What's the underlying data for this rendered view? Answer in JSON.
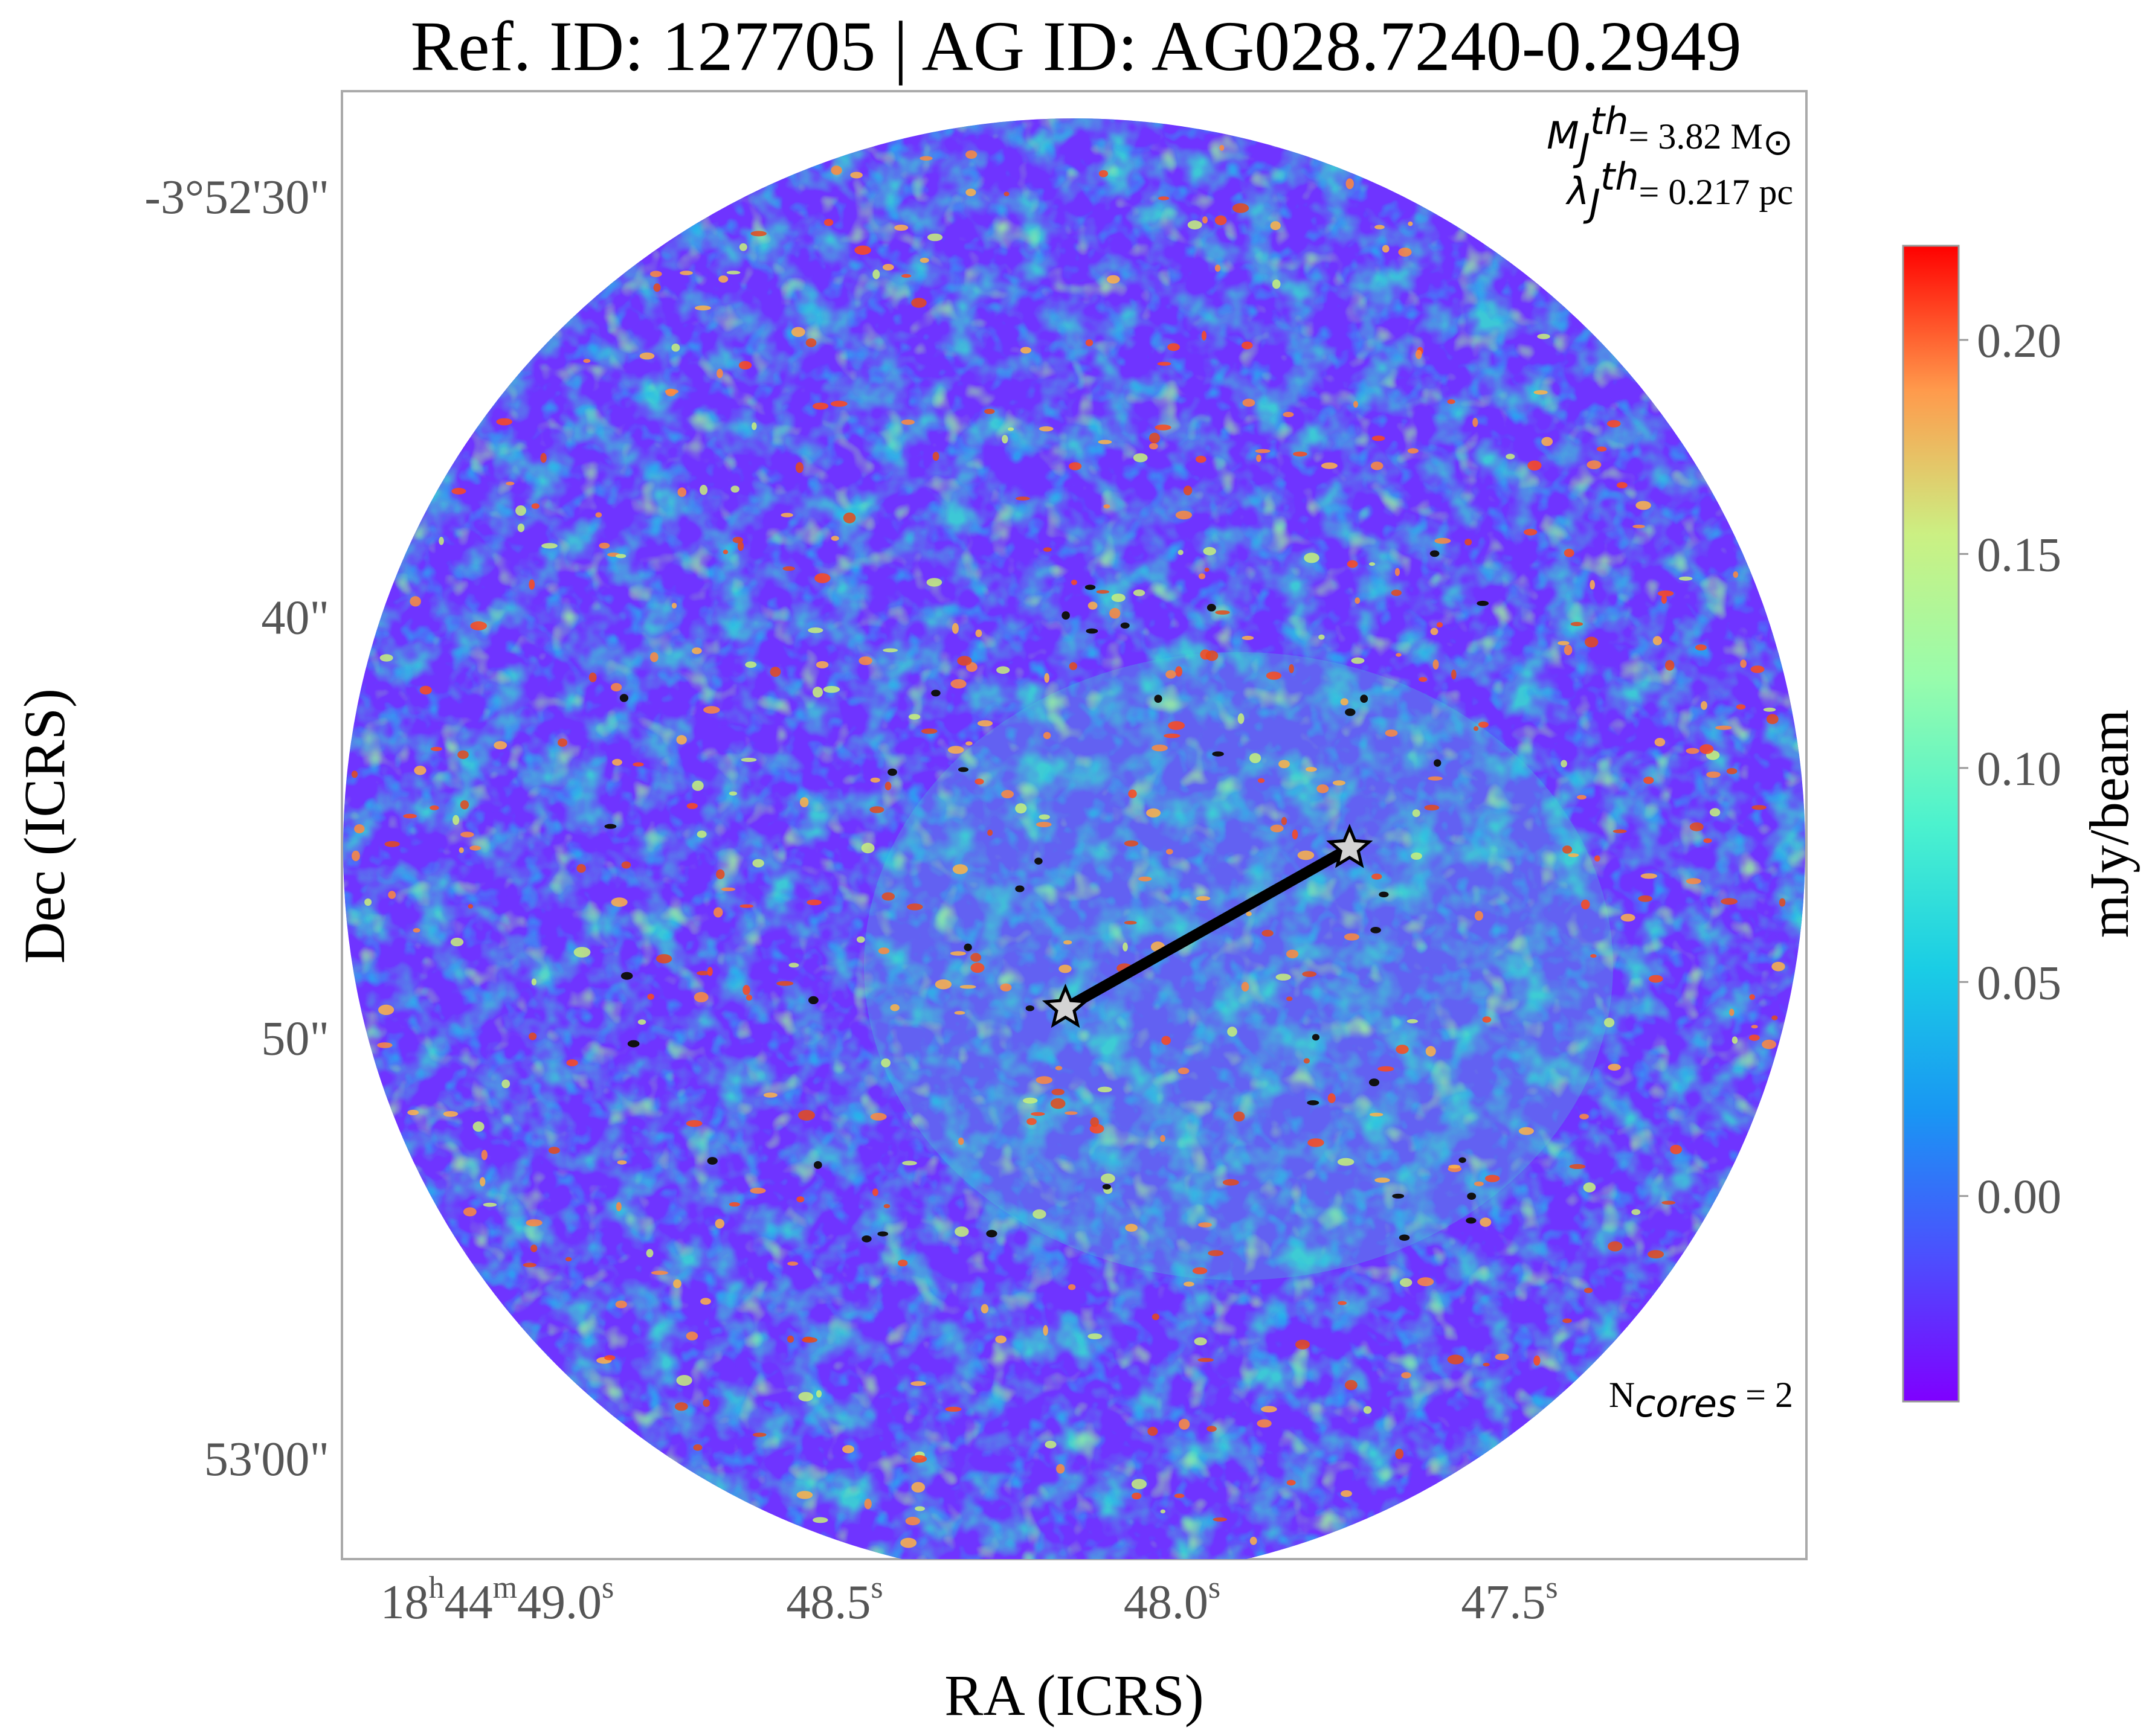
{
  "chart_data": {
    "type": "heatmap",
    "title": "Ref. ID: 127705 | AG ID: AG028.7240-0.2949",
    "xlabel": "RA (ICRS)",
    "ylabel": "Dec (ICRS)",
    "x_ticks": [
      {
        "value": 49.0,
        "h": "18",
        "m": "44",
        "s": "49.0"
      },
      {
        "value": 48.5,
        "s": "48.5"
      },
      {
        "value": 48.0,
        "s": "48.0"
      },
      {
        "value": 47.5,
        "s": "47.5"
      }
    ],
    "y_ticks": [
      {
        "value": 30,
        "label": "-3°52'30\""
      },
      {
        "value": 40,
        "label": "40\""
      },
      {
        "value": 50,
        "label": "50\""
      },
      {
        "value": 60,
        "label": "53'00\""
      }
    ],
    "xlim": [
      49.23,
      47.06
    ],
    "ylim_arcsec": [
      62.4,
      27.5
    ],
    "colorbar": {
      "label": "mJy/beam",
      "colormap": "rainbow",
      "vmin": -0.048,
      "vmax": 0.222,
      "ticks": [
        0.0,
        0.05,
        0.1,
        0.15,
        0.2
      ],
      "tick_labels": [
        "0.00",
        "0.05",
        "0.10",
        "0.15",
        "0.20"
      ]
    },
    "annotations": {
      "mj_symbol": "M",
      "mj_sub": "J",
      "mj_sup": "th",
      "mj_text": "= 3.82 M",
      "mj_sun": "⊙",
      "lj_symbol": "λ",
      "lj_sub": "J",
      "lj_sup": "th",
      "lj_text": "= 0.217 pc",
      "ncores_base": "N",
      "ncores_sub": "cores",
      "ncores_text": " = 2"
    },
    "cores": [
      {
        "ra_s": 48.158,
        "dec_arcsec": 49.3
      },
      {
        "ra_s": 47.737,
        "dec_arcsec": 45.5
      }
    ],
    "colors": {
      "low": "#7b1fff",
      "mid": "#2fd8d0",
      "high": "#ff0000",
      "core_marker": "#d3d3d3",
      "connector": "#000000",
      "frame": "#aaaaaa"
    }
  }
}
